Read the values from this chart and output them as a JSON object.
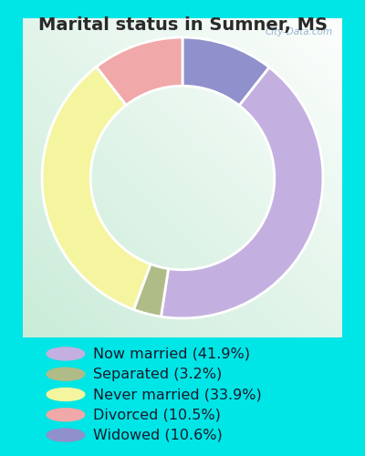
{
  "title": "Marital status in Sumner, MS",
  "slices": [
    41.9,
    3.2,
    33.9,
    10.5,
    10.6
  ],
  "labels": [
    "Now married (41.9%)",
    "Separated (3.2%)",
    "Never married (33.9%)",
    "Divorced (10.5%)",
    "Widowed (10.6%)"
  ],
  "colors": [
    "#c4b0e0",
    "#b0bc88",
    "#f5f5a0",
    "#f0a8a8",
    "#9090cc"
  ],
  "bg_color": "#00e5e5",
  "chart_bg_left": "#c8e8d0",
  "chart_bg_right": "#e8f8f0",
  "title_fontsize": 14,
  "legend_fontsize": 11.5,
  "watermark": "City-Data.com",
  "donut_width": 0.38,
  "pie_order": [
    4,
    0,
    1,
    2,
    3
  ]
}
